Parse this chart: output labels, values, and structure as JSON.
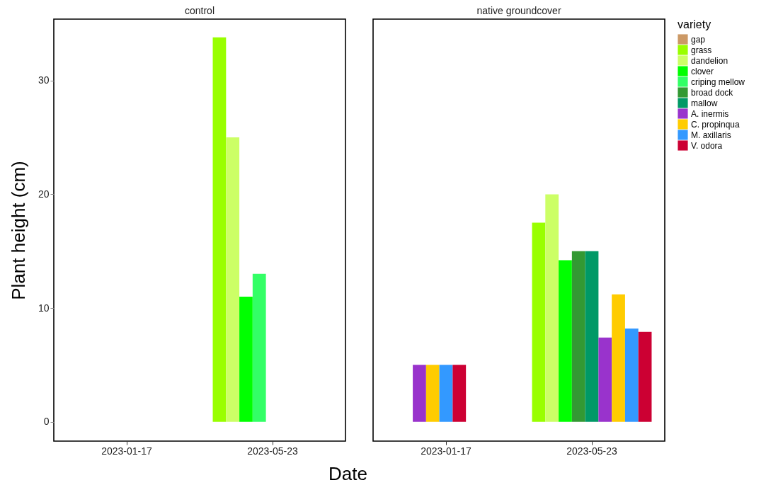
{
  "chart_data": [
    {
      "type": "bar",
      "title": "control",
      "xlabel": "Date",
      "ylabel": "Plant height (cm)",
      "categories": [
        "2023-01-17",
        "2023-05-23"
      ],
      "ylim": [
        -1.7,
        35.4
      ],
      "yticks": [
        0,
        10,
        20,
        30
      ],
      "grid": false,
      "legend": false,
      "series": [
        {
          "color": "#99ff00",
          "values": [
            null,
            33.8
          ]
        },
        {
          "color": "#ccff66",
          "values": [
            null,
            25
          ]
        },
        {
          "color": "#00ff00",
          "values": [
            null,
            11
          ]
        },
        {
          "color": "#33ff66",
          "values": [
            null,
            13
          ]
        }
      ]
    },
    {
      "type": "bar",
      "title": "native groundcover",
      "legend_title": "variety",
      "categories": [
        "2023-01-17",
        "2023-05-23"
      ],
      "ylim": [
        -1.7,
        35.4
      ],
      "yticks": [
        0,
        10,
        20,
        30
      ],
      "grid": false,
      "legend": "right",
      "tick_labels": "x",
      "series": [
        {
          "name": "gap",
          "color": "#cc9966",
          "values": [
            null,
            null
          ]
        },
        {
          "name": "grass",
          "color": "#99ff00",
          "values": [
            null,
            17.5
          ]
        },
        {
          "name": "dandelion",
          "color": "#ccff66",
          "values": [
            null,
            20
          ]
        },
        {
          "name": "clover",
          "color": "#00ff00",
          "values": [
            null,
            14.2
          ]
        },
        {
          "name": "criping mellow",
          "color": "#33ff66",
          "values": [
            null,
            null
          ]
        },
        {
          "name": "broad dock",
          "color": "#339933",
          "values": [
            null,
            15
          ]
        },
        {
          "name": "mallow",
          "color": "#009966",
          "values": [
            null,
            15
          ]
        },
        {
          "name": "A. inermis",
          "color": "#9933cc",
          "values": [
            5,
            7.4
          ]
        },
        {
          "name": "C. propinqua",
          "color": "#ffcc00",
          "values": [
            5,
            11.2
          ]
        },
        {
          "name": "M. axillaris",
          "color": "#3399ff",
          "values": [
            5,
            8.2
          ]
        },
        {
          "name": "V. odora",
          "color": "#cc0033",
          "values": [
            5,
            7.9
          ]
        }
      ]
    }
  ]
}
